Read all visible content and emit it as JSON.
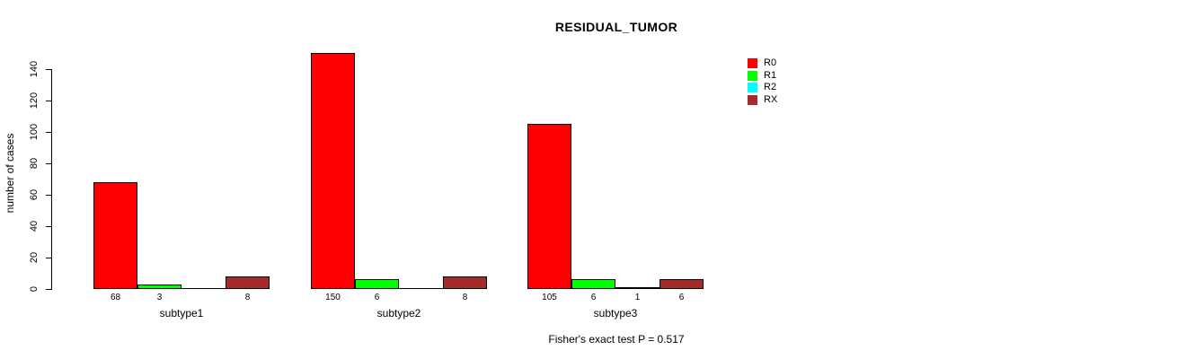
{
  "chart_data": {
    "type": "bar",
    "title": "RESIDUAL_TUMOR",
    "ylabel": "number of cases",
    "xlabel": "",
    "categories": [
      "subtype1",
      "subtype2",
      "subtype3"
    ],
    "series": [
      {
        "name": "R0",
        "color": "#ff0000",
        "values": [
          68,
          150,
          105
        ]
      },
      {
        "name": "R1",
        "color": "#00ff00",
        "values": [
          3,
          6,
          6
        ]
      },
      {
        "name": "R2",
        "color": "#00ffff",
        "values": [
          0,
          0,
          1
        ]
      },
      {
        "name": "RX",
        "color": "#a52a2a",
        "values": [
          8,
          8,
          6
        ]
      }
    ],
    "yticks": [
      0,
      20,
      40,
      60,
      80,
      100,
      120,
      140
    ],
    "ylim": [
      0,
      150
    ],
    "grid": false,
    "bar_border_color": "#000000",
    "hide_zero_value_labels": true,
    "legend": {
      "position": "top-right",
      "entries": [
        "R0",
        "R1",
        "R2",
        "RX"
      ]
    }
  },
  "footnote": "Fisher's exact test P = 0.517"
}
